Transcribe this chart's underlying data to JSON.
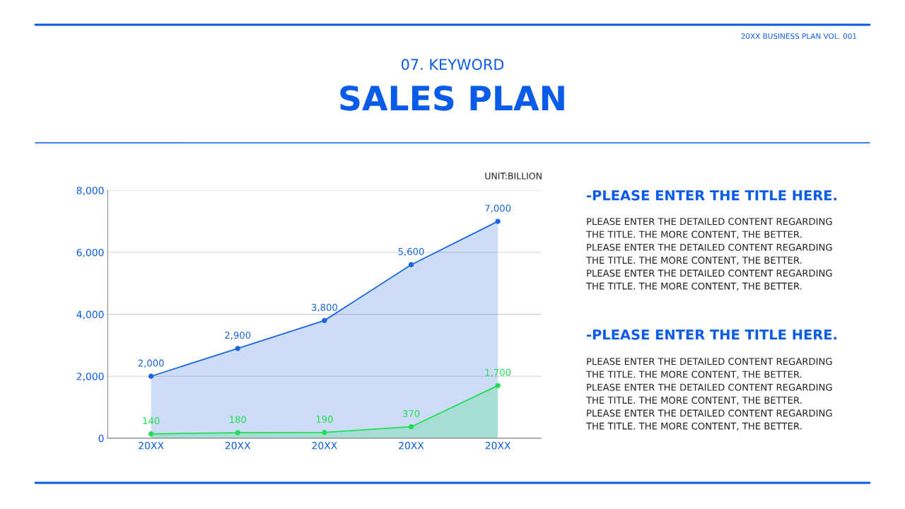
{
  "chart_data": {
    "type": "area",
    "title": "SALES PLAN",
    "subtitle": "07. KEYWORD",
    "categories": [
      "20XX",
      "20XX",
      "20XX",
      "20XX",
      "20XX"
    ],
    "series": [
      {
        "color": "#1a66e0",
        "values": [
          2000,
          2900,
          3800,
          5600,
          7000
        ],
        "value_labels": [
          "2,000",
          "2,900",
          "3,800",
          "5,600",
          "7,000"
        ]
      },
      {
        "color": "#22dd55",
        "values": [
          140,
          180,
          190,
          370,
          1700
        ],
        "value_labels": [
          "140",
          "180",
          "190",
          "370",
          "1,700"
        ]
      }
    ],
    "ylim": [
      0,
      8000
    ],
    "yticks": [
      0,
      {
        "value": 2000,
        "label": "2,000"
      },
      {
        "value": 4000,
        "label": "4,000"
      },
      {
        "value": 6000,
        "label": "6,000"
      },
      {
        "value": 8000,
        "label": "8,000"
      }
    ],
    "grid": "y",
    "marker": "circle",
    "annotations": [
      "20XX BUSINESS PLAN VOL. 001",
      "UNIT:BILLION",
      "-PLEASE ENTER THE TITLE HERE.",
      "PLEASE ENTER THE DETAILED CONTENT REGARDING\nTHE TITLE. THE MORE CONTENT, THE BETTER.\nPLEASE ENTER THE DETAILED CONTENT REGARDING\nTHE TITLE. THE MORE CONTENT, THE BETTER.\nPLEASE ENTER THE DETAILED CONTENT REGARDING\nTHE TITLE. THE MORE CONTENT, THE BETTER.",
      "-PLEASE ENTER THE TITLE HERE.",
      "PLEASE ENTER THE DETAILED CONTENT REGARDING\nTHE TITLE. THE MORE CONTENT, THE BETTER.\nPLEASE ENTER THE DETAILED CONTENT REGARDING\nTHE TITLE. THE MORE CONTENT, THE BETTER.\nPLEASE ENTER THE DETAILED CONTENT REGARDING\nTHE TITLE. THE MORE CONTENT, THE BETTER."
    ]
  }
}
